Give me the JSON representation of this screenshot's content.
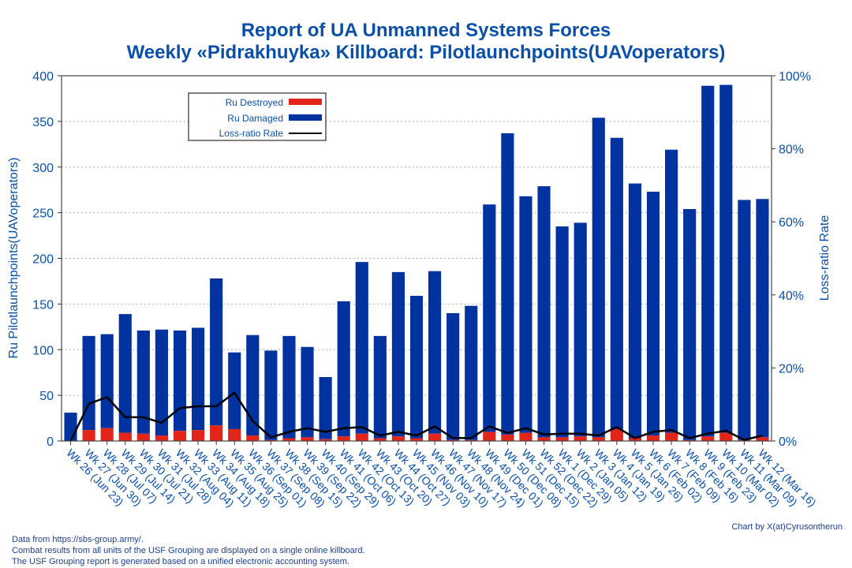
{
  "title_line1": "Report of UA Unmanned Systems Forces",
  "title_line2": "Weekly «Pidrakhuyka» Killboard: Pilotlaunchpoints(UAVoperators)",
  "credit": "Chart by X(at)Cyrusontherun",
  "footnotes": [
    "Data from https://sbs-group.army/.",
    "Combat results from all units of the USF Grouping are displayed on a single online killboard.",
    "The USF Grouping report is generated based on a unified electronic accounting system."
  ],
  "colors": {
    "destroyed": "#e1251b",
    "damaged": "#0033a0",
    "line": "#000000",
    "text": "#0a4fa8"
  },
  "chart_data": {
    "type": "bar",
    "stacked": true,
    "categories": [
      "Wk 26 (Jun 23)",
      "Wk 27 (Jun 30)",
      "Wk 28 (Jul 07)",
      "Wk 29 (Jul 14)",
      "Wk 30 (Jul 21)",
      "Wk 31 (Jul 28)",
      "Wk 32 (Aug 04)",
      "Wk 33 (Aug 11)",
      "Wk 34 (Aug 18)",
      "Wk 35 (Aug 25)",
      "Wk 36 (Sep 01)",
      "Wk 37 (Sep 08)",
      "Wk 38 (Sep 15)",
      "Wk 39 (Sep 22)",
      "Wk 40 (Sep 29)",
      "Wk 41 (Oct 06)",
      "Wk 42 (Oct 13)",
      "Wk 43 (Oct 20)",
      "Wk 44 (Oct 27)",
      "Wk 45 (Nov 03)",
      "Wk 46 (Nov 10)",
      "Wk 47 (Nov 17)",
      "Wk 48 (Nov 24)",
      "Wk 49 (Dec 01)",
      "Wk 50 (Dec 08)",
      "Wk 51 (Dec 15)",
      "Wk 52 (Dec 22)",
      "Wk 1 (Dec 29)",
      "Wk 2 (Jan 05)",
      "Wk 3 (Jan 12)",
      "Wk 4 (Jan 19)",
      "Wk 5 (Jan 26)",
      "Wk 6 (Feb 02)",
      "Wk 7 (Feb 09)",
      "Wk 8 (Feb 16)",
      "Wk 9 (Feb 23)",
      "Wk 10 (Mar 02)",
      "Wk 11 (Mar 09)",
      "Wk 12 (Mar 16)"
    ],
    "series": [
      {
        "name": "Ru Destroyed",
        "values": [
          0,
          12,
          14,
          9,
          8,
          6,
          11,
          12,
          17,
          13,
          6,
          1,
          3,
          4,
          2,
          5,
          8,
          3,
          5,
          3,
          8,
          1,
          1,
          10,
          7,
          9,
          4,
          4,
          5,
          4,
          13,
          3,
          6,
          9,
          1,
          5,
          9,
          1,
          4
        ]
      },
      {
        "name": "Ru Damaged",
        "values": [
          31,
          103,
          103,
          130,
          113,
          116,
          110,
          112,
          161,
          84,
          110,
          98,
          112,
          99,
          68,
          148,
          188,
          112,
          180,
          156,
          178,
          139,
          147,
          249,
          330,
          259,
          275,
          231,
          234,
          350,
          319,
          279,
          267,
          310,
          253,
          384,
          381,
          263,
          261
        ]
      },
      {
        "name": "Loss-ratio Rate",
        "axis": "right",
        "values": [
          0,
          10.2,
          12.0,
          6.5,
          6.5,
          5.0,
          9.0,
          9.5,
          9.5,
          13.2,
          5.5,
          1.0,
          2.5,
          3.5,
          2.5,
          3.5,
          3.8,
          1.5,
          2.5,
          1.5,
          4.0,
          0.8,
          0.8,
          4.0,
          2.2,
          3.5,
          1.8,
          2.0,
          2.0,
          1.5,
          3.8,
          0.8,
          2.5,
          3.0,
          0.8,
          2.0,
          2.8,
          0.3,
          1.5
        ]
      }
    ],
    "ylabel": "Ru Pilotlaunchpoints(UAVoperators)",
    "y2label": "Loss-ratio Rate",
    "ylim": [
      0,
      400
    ],
    "yticks": [
      "0",
      "50",
      "100",
      "150",
      "200",
      "250",
      "300",
      "350",
      "400"
    ],
    "y2lim": [
      0,
      100
    ],
    "y2ticks": [
      "0%",
      "20%",
      "40%",
      "60%",
      "80%",
      "100%"
    ],
    "grid": true,
    "legend_position": "top-left"
  }
}
